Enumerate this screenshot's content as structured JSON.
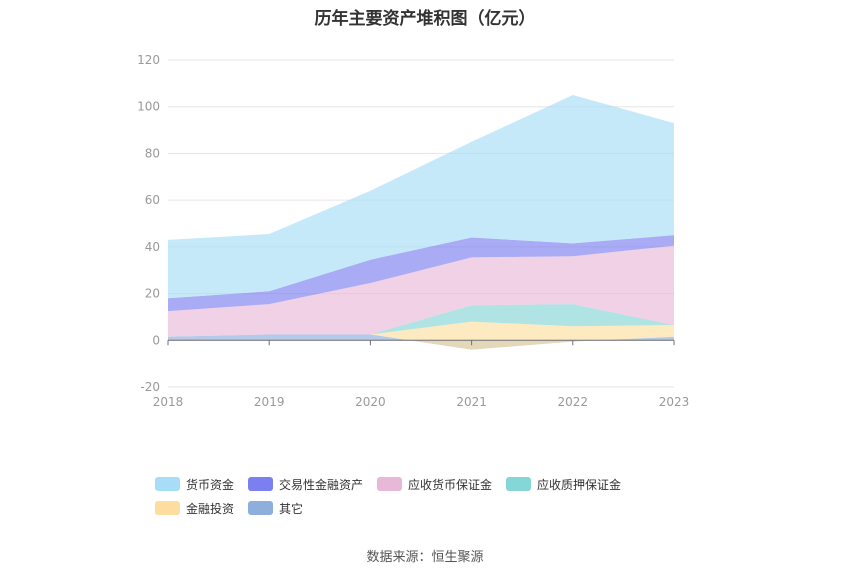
{
  "chart_data": {
    "type": "area",
    "stacked": true,
    "title": "历年主要资产堆积图（亿元）",
    "categories": [
      "2018",
      "2019",
      "2020",
      "2021",
      "2022",
      "2023"
    ],
    "ylim": [
      -20,
      120
    ],
    "yticks": [
      -20,
      0,
      20,
      40,
      60,
      80,
      100,
      120
    ],
    "grid": true,
    "legend_position": "bottom",
    "series": [
      {
        "name": "其它",
        "color": "#8eaedc",
        "values": [
          1.5,
          2.5,
          2.5,
          -4,
          -0.5,
          1.5
        ]
      },
      {
        "name": "金融投资",
        "color": "#fedea0",
        "values": [
          0,
          0,
          0,
          12,
          6.5,
          5
        ]
      },
      {
        "name": "应收质押保证金",
        "color": "#85d6d6",
        "values": [
          0,
          0,
          0,
          7,
          9.5,
          0
        ]
      },
      {
        "name": "应收货币保证金",
        "color": "#e8b8d8",
        "values": [
          11,
          13,
          22,
          20.5,
          20.5,
          34
        ]
      },
      {
        "name": "交易性金融资产",
        "color": "#7b7ff0",
        "values": [
          5.5,
          5.5,
          10,
          8.5,
          5.5,
          4.5
        ]
      },
      {
        "name": "货币资金",
        "color": "#a8ddf8",
        "values": [
          25,
          24.5,
          29.5,
          41,
          63.5,
          48
        ]
      }
    ]
  },
  "legend_order": [
    "货币资金",
    "交易性金融资产",
    "应收货币保证金",
    "应收质押保证金",
    "金融投资",
    "其它"
  ],
  "source": "数据来源：恒生聚源"
}
